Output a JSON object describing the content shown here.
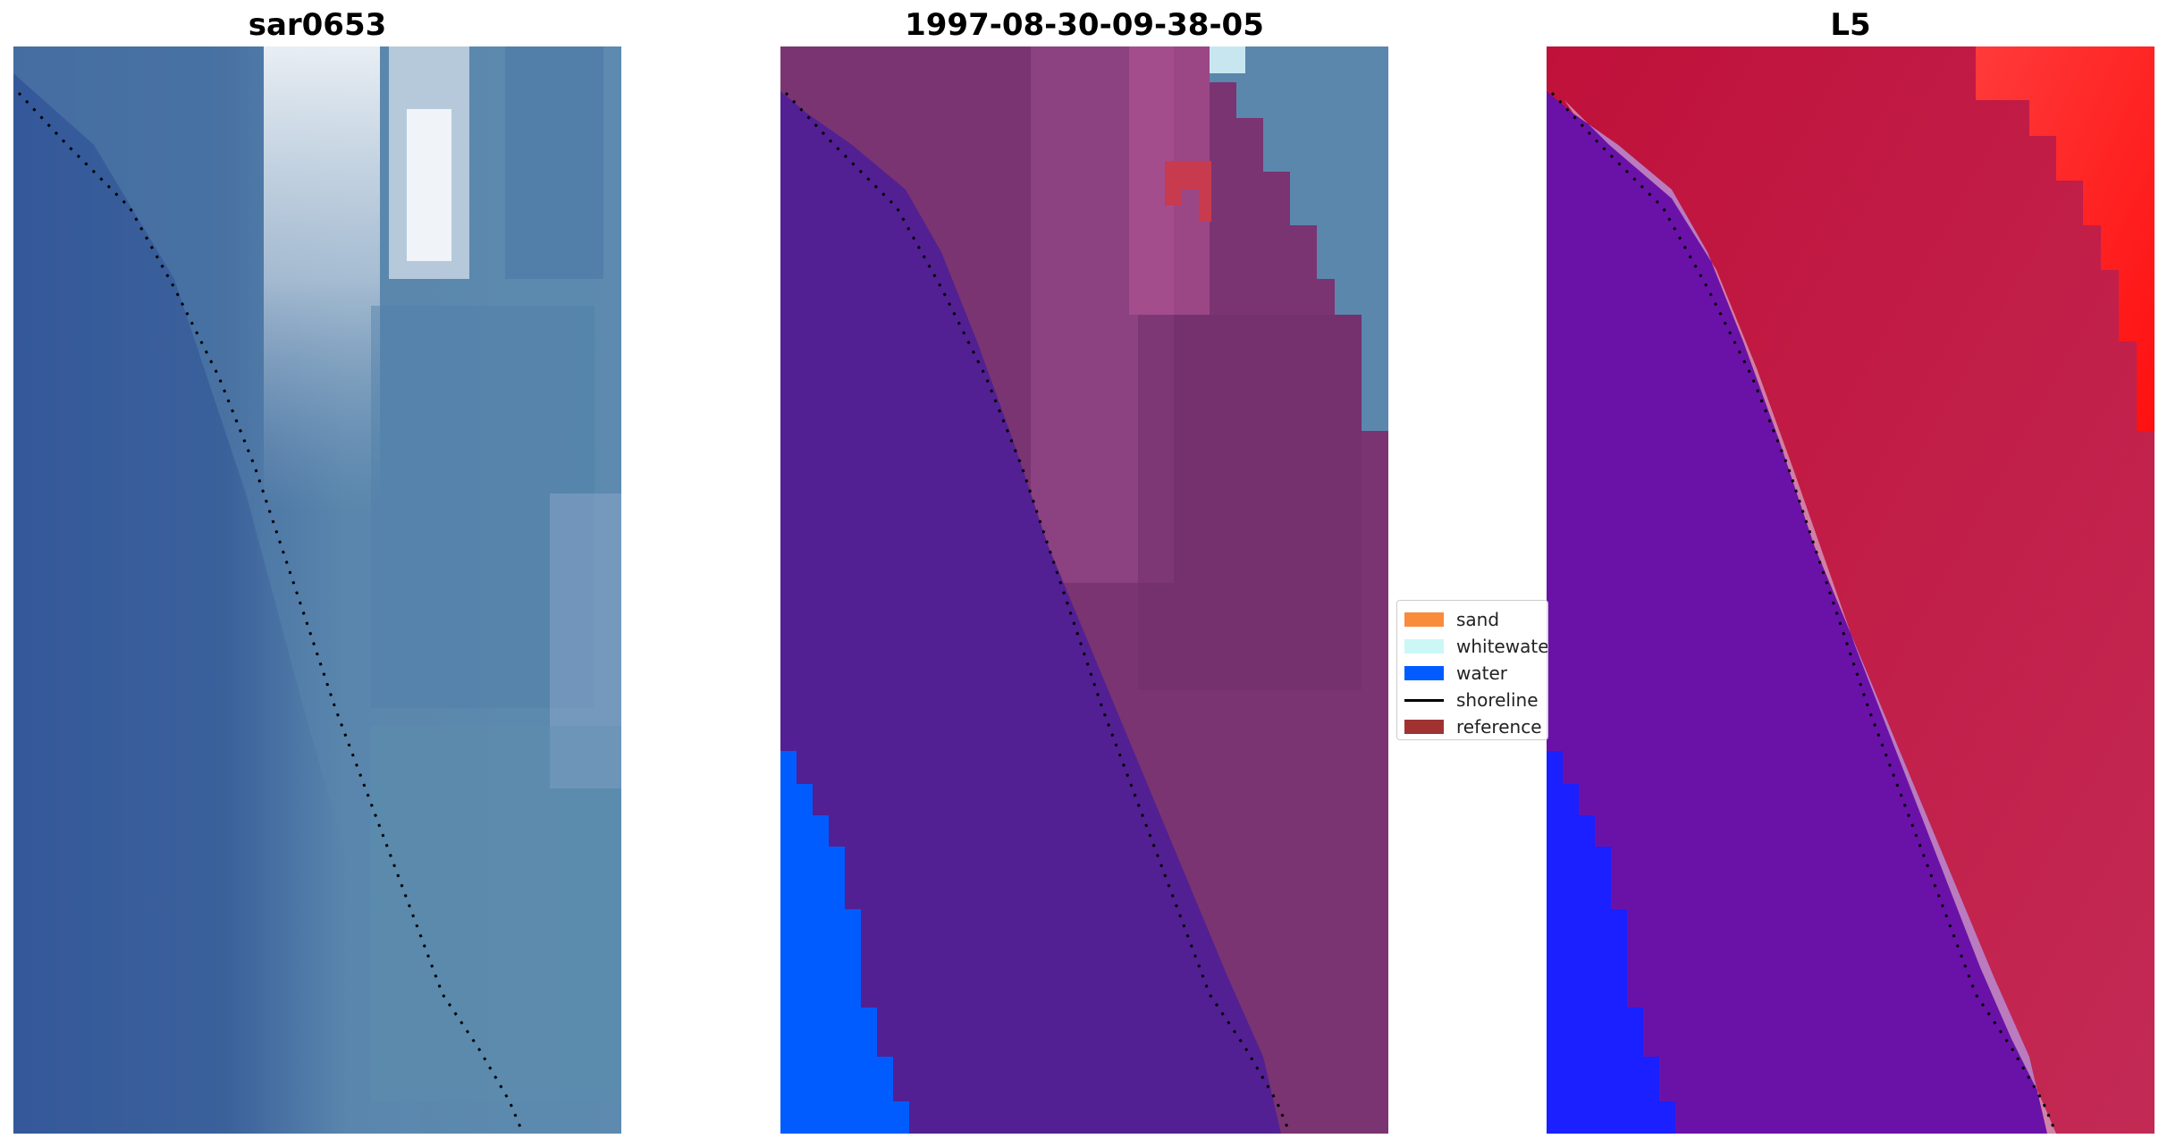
{
  "panels": [
    {
      "title": "sar0653"
    },
    {
      "title": "1997-08-30-09-38-05"
    },
    {
      "title": "L5"
    }
  ],
  "legend": {
    "items": [
      {
        "label": "sand",
        "color": "#f98b3c"
      },
      {
        "label": "whitewater",
        "color": "#ccf7f7"
      },
      {
        "label": "water",
        "color": "#005cff"
      },
      {
        "label": "shoreline",
        "color": "#000000"
      },
      {
        "label": "reference",
        "color": "#a03232"
      }
    ]
  },
  "colors": {
    "rgb_water": "#3d5f96",
    "rgb_land": "#5b86a8",
    "class_water": "#522093",
    "class_land": "#7a3472",
    "class_blue": "#005cff",
    "class_reference": "#c83a4e",
    "mndwi_land": "#c0113a",
    "mndwi_water": "#6a12a8",
    "mndwi_bright": "#ff2a2a"
  }
}
